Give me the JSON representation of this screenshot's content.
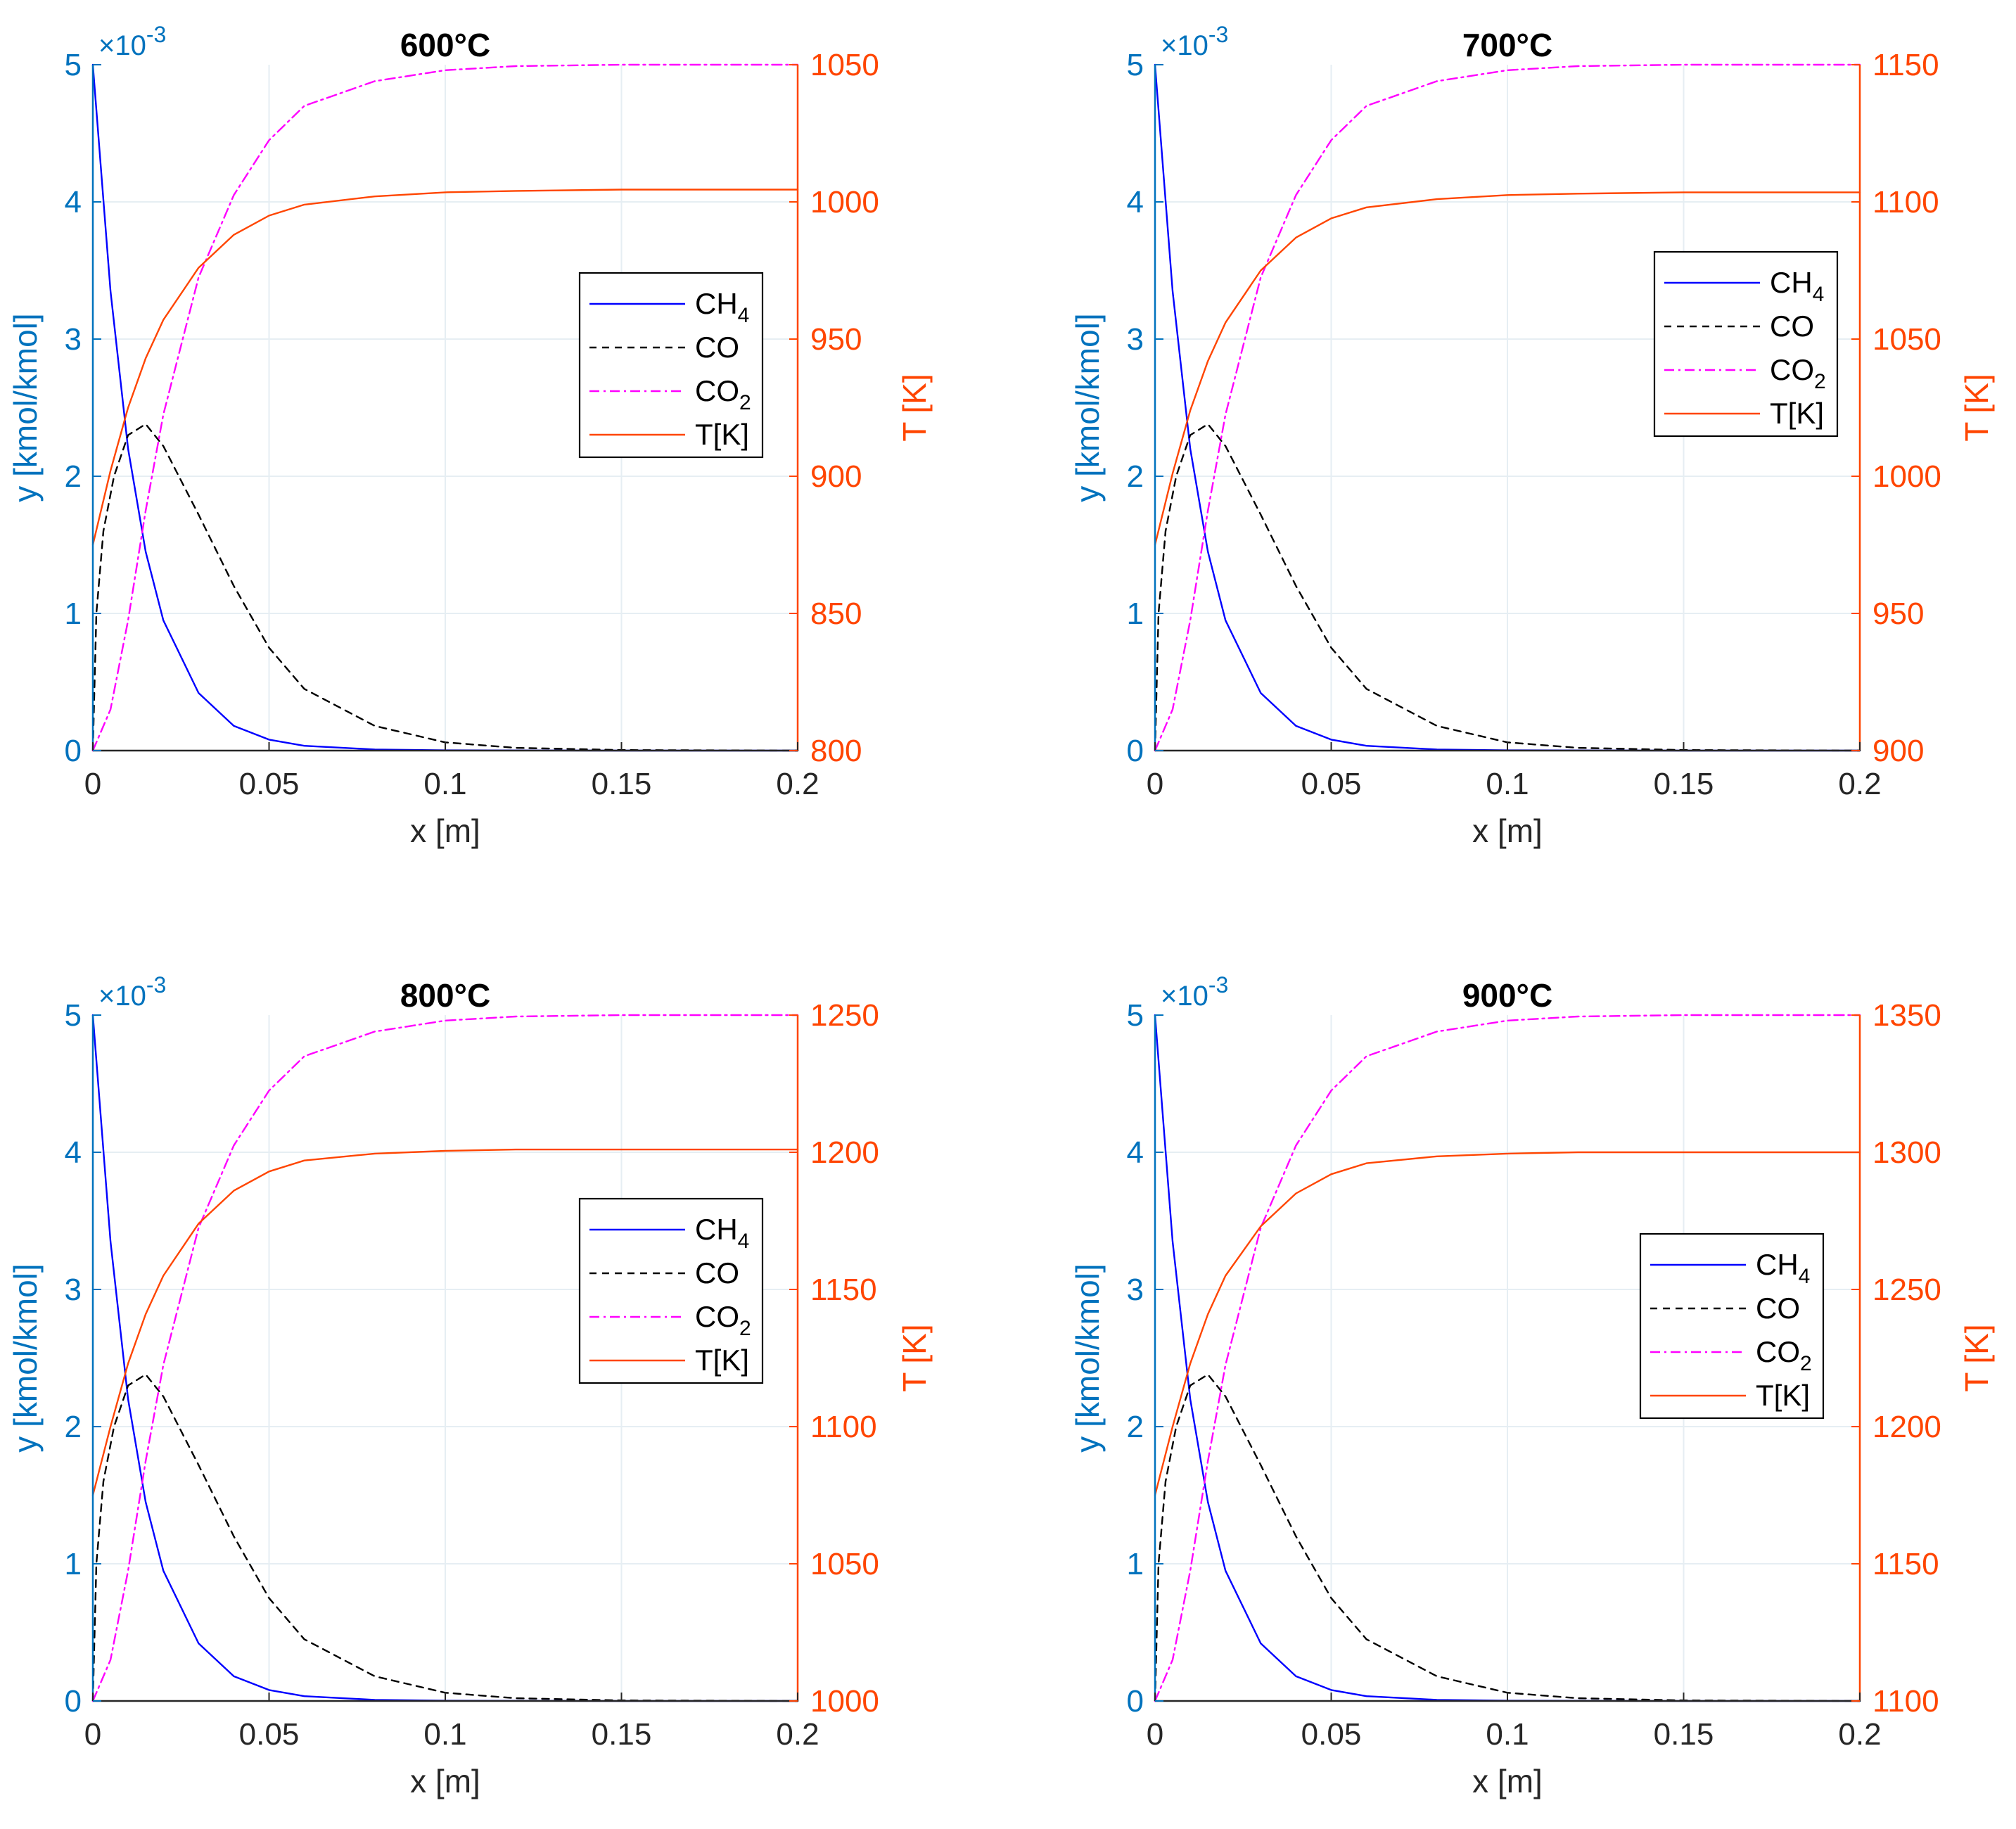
{
  "colors": {
    "CH4": "#0000FF",
    "CO": "#000000",
    "CO2": "#FF00FF",
    "T": "#FF4500",
    "left_axis": "#0072BD",
    "right_axis": "#FF4500",
    "grid": "#E6EEF3",
    "axis": "#262626"
  },
  "legend_labels": {
    "CH4": {
      "base": "CH",
      "sub": "4"
    },
    "CO": {
      "base": "CO",
      "sub": ""
    },
    "CO2": {
      "base": "CO",
      "sub": "2"
    },
    "T": {
      "base": "T[K]",
      "sub": ""
    }
  },
  "chart_data": [
    {
      "type": "line",
      "title": "600°C",
      "xlabel": "x [m]",
      "ylabel": "y [kmol/kmol]",
      "ylabel_right": "T [K]",
      "y_exponent": "×10",
      "y_exponent_power": "-3",
      "xlim": [
        0,
        0.2
      ],
      "ylim": [
        0,
        5
      ],
      "ylim_right": [
        800,
        1050
      ],
      "xticks": [
        "0",
        "0.05",
        "0.1",
        "0.15",
        "0.2"
      ],
      "yticks": [
        "0",
        "1",
        "2",
        "3",
        "4",
        "5"
      ],
      "yticks_right": [
        "800",
        "850",
        "900",
        "950",
        "1000",
        "1050"
      ],
      "grid": true,
      "legend_position": "center-right",
      "series": [
        {
          "name": "CH4",
          "axis": "left",
          "style": "solid",
          "x": [
            0,
            0.005,
            0.01,
            0.015,
            0.02,
            0.03,
            0.04,
            0.05,
            0.06,
            0.08,
            0.1,
            0.15,
            0.2
          ],
          "y": [
            5.0,
            3.35,
            2.2,
            1.45,
            0.95,
            0.42,
            0.18,
            0.08,
            0.035,
            0.008,
            0.002,
            0.0,
            0.0
          ]
        },
        {
          "name": "CO",
          "axis": "left",
          "style": "dashed",
          "x": [
            0,
            0.001,
            0.003,
            0.006,
            0.01,
            0.015,
            0.02,
            0.03,
            0.04,
            0.05,
            0.06,
            0.08,
            0.1,
            0.12,
            0.15,
            0.2
          ],
          "y": [
            0.0,
            1.0,
            1.6,
            2.0,
            2.3,
            2.38,
            2.22,
            1.72,
            1.2,
            0.75,
            0.45,
            0.18,
            0.06,
            0.02,
            0.004,
            0.0
          ]
        },
        {
          "name": "CO2",
          "axis": "left",
          "style": "dashdot",
          "x": [
            0,
            0.005,
            0.01,
            0.015,
            0.02,
            0.03,
            0.04,
            0.05,
            0.06,
            0.08,
            0.1,
            0.12,
            0.15,
            0.2
          ],
          "y": [
            0.0,
            0.3,
            0.95,
            1.75,
            2.45,
            3.45,
            4.05,
            4.45,
            4.7,
            4.88,
            4.96,
            4.99,
            5.0,
            5.0
          ]
        },
        {
          "name": "T[K]",
          "axis": "right",
          "style": "solid",
          "x": [
            0,
            0.005,
            0.01,
            0.015,
            0.02,
            0.03,
            0.04,
            0.05,
            0.06,
            0.08,
            0.1,
            0.12,
            0.15,
            0.2
          ],
          "y": [
            875,
            902,
            925,
            943,
            957,
            976,
            988,
            995,
            999,
            1002,
            1003.5,
            1004,
            1004.5,
            1004.5
          ]
        }
      ]
    },
    {
      "type": "line",
      "title": "700°C",
      "xlabel": "x [m]",
      "ylabel": "y [kmol/kmol]",
      "ylabel_right": "T [K]",
      "y_exponent": "×10",
      "y_exponent_power": "-3",
      "xlim": [
        0,
        0.2
      ],
      "ylim": [
        0,
        5
      ],
      "ylim_right": [
        900,
        1150
      ],
      "xticks": [
        "0",
        "0.05",
        "0.1",
        "0.15",
        "0.2"
      ],
      "yticks": [
        "0",
        "1",
        "2",
        "3",
        "4",
        "5"
      ],
      "yticks_right": [
        "900",
        "950",
        "1000",
        "1050",
        "1100",
        "1150"
      ],
      "grid": true,
      "legend_position": "upper-right",
      "series": [
        {
          "name": "CH4",
          "axis": "left",
          "style": "solid",
          "x": [
            0,
            0.005,
            0.01,
            0.015,
            0.02,
            0.03,
            0.04,
            0.05,
            0.06,
            0.08,
            0.1,
            0.15,
            0.2
          ],
          "y": [
            5.0,
            3.35,
            2.2,
            1.45,
            0.95,
            0.42,
            0.18,
            0.08,
            0.035,
            0.008,
            0.002,
            0.0,
            0.0
          ]
        },
        {
          "name": "CO",
          "axis": "left",
          "style": "dashed",
          "x": [
            0,
            0.001,
            0.003,
            0.006,
            0.01,
            0.015,
            0.02,
            0.03,
            0.04,
            0.05,
            0.06,
            0.08,
            0.1,
            0.12,
            0.15,
            0.2
          ],
          "y": [
            0.0,
            1.0,
            1.6,
            2.0,
            2.3,
            2.38,
            2.22,
            1.72,
            1.2,
            0.75,
            0.45,
            0.18,
            0.06,
            0.02,
            0.004,
            0.0
          ]
        },
        {
          "name": "CO2",
          "axis": "left",
          "style": "dashdot",
          "x": [
            0,
            0.005,
            0.01,
            0.015,
            0.02,
            0.03,
            0.04,
            0.05,
            0.06,
            0.08,
            0.1,
            0.12,
            0.15,
            0.2
          ],
          "y": [
            0.0,
            0.3,
            0.95,
            1.75,
            2.45,
            3.45,
            4.05,
            4.45,
            4.7,
            4.88,
            4.96,
            4.99,
            5.0,
            5.0
          ]
        },
        {
          "name": "T[K]",
          "axis": "right",
          "style": "solid",
          "x": [
            0,
            0.005,
            0.01,
            0.015,
            0.02,
            0.03,
            0.04,
            0.05,
            0.06,
            0.08,
            0.1,
            0.12,
            0.15,
            0.2
          ],
          "y": [
            975,
            1001,
            1024,
            1042,
            1056,
            1075,
            1087,
            1094,
            1098,
            1101,
            1102.5,
            1103,
            1103.5,
            1103.5
          ]
        }
      ]
    },
    {
      "type": "line",
      "title": "800°C",
      "xlabel": "x [m]",
      "ylabel": "y [kmol/kmol]",
      "ylabel_right": "T [K]",
      "y_exponent": "×10",
      "y_exponent_power": "-3",
      "xlim": [
        0,
        0.2
      ],
      "ylim": [
        0,
        5
      ],
      "ylim_right": [
        1000,
        1250
      ],
      "xticks": [
        "0",
        "0.05",
        "0.1",
        "0.15",
        "0.2"
      ],
      "yticks": [
        "0",
        "1",
        "2",
        "3",
        "4",
        "5"
      ],
      "yticks_right": [
        "1000",
        "1050",
        "1100",
        "1150",
        "1200",
        "1250"
      ],
      "grid": true,
      "legend_position": "center-right",
      "series": [
        {
          "name": "CH4",
          "axis": "left",
          "style": "solid",
          "x": [
            0,
            0.005,
            0.01,
            0.015,
            0.02,
            0.03,
            0.04,
            0.05,
            0.06,
            0.08,
            0.1,
            0.15,
            0.2
          ],
          "y": [
            5.0,
            3.35,
            2.2,
            1.45,
            0.95,
            0.42,
            0.18,
            0.08,
            0.035,
            0.008,
            0.002,
            0.0,
            0.0
          ]
        },
        {
          "name": "CO",
          "axis": "left",
          "style": "dashed",
          "x": [
            0,
            0.001,
            0.003,
            0.006,
            0.01,
            0.015,
            0.02,
            0.03,
            0.04,
            0.05,
            0.06,
            0.08,
            0.1,
            0.12,
            0.15,
            0.2
          ],
          "y": [
            0.0,
            1.0,
            1.6,
            2.0,
            2.3,
            2.38,
            2.22,
            1.72,
            1.2,
            0.75,
            0.45,
            0.18,
            0.06,
            0.02,
            0.004,
            0.0
          ]
        },
        {
          "name": "CO2",
          "axis": "left",
          "style": "dashdot",
          "x": [
            0,
            0.005,
            0.01,
            0.015,
            0.02,
            0.03,
            0.04,
            0.05,
            0.06,
            0.08,
            0.1,
            0.12,
            0.15,
            0.2
          ],
          "y": [
            0.0,
            0.3,
            0.95,
            1.75,
            2.45,
            3.45,
            4.05,
            4.45,
            4.7,
            4.88,
            4.96,
            4.99,
            5.0,
            5.0
          ]
        },
        {
          "name": "T[K]",
          "axis": "right",
          "style": "solid",
          "x": [
            0,
            0.005,
            0.01,
            0.015,
            0.02,
            0.03,
            0.04,
            0.05,
            0.06,
            0.08,
            0.1,
            0.12,
            0.15,
            0.2
          ],
          "y": [
            1075,
            1100,
            1123,
            1141,
            1155,
            1174,
            1186,
            1193,
            1197,
            1199.5,
            1200.5,
            1201,
            1201,
            1201
          ]
        }
      ]
    },
    {
      "type": "line",
      "title": "900°C",
      "xlabel": "x [m]",
      "ylabel": "y [kmol/kmol]",
      "ylabel_right": "T [K]",
      "y_exponent": "×10",
      "y_exponent_power": "-3",
      "xlim": [
        0,
        0.2
      ],
      "ylim": [
        0,
        5
      ],
      "ylim_right": [
        1100,
        1350
      ],
      "xticks": [
        "0",
        "0.05",
        "0.1",
        "0.15",
        "0.2"
      ],
      "yticks": [
        "0",
        "1",
        "2",
        "3",
        "4",
        "5"
      ],
      "yticks_right": [
        "1100",
        "1150",
        "1200",
        "1250",
        "1300",
        "1350"
      ],
      "grid": true,
      "legend_position": "center-right",
      "series": [
        {
          "name": "CH4",
          "axis": "left",
          "style": "solid",
          "x": [
            0,
            0.005,
            0.01,
            0.015,
            0.02,
            0.03,
            0.04,
            0.05,
            0.06,
            0.08,
            0.1,
            0.15,
            0.2
          ],
          "y": [
            5.0,
            3.35,
            2.2,
            1.45,
            0.95,
            0.42,
            0.18,
            0.08,
            0.035,
            0.008,
            0.002,
            0.0,
            0.0
          ]
        },
        {
          "name": "CO",
          "axis": "left",
          "style": "dashed",
          "x": [
            0,
            0.001,
            0.003,
            0.006,
            0.01,
            0.015,
            0.02,
            0.03,
            0.04,
            0.05,
            0.06,
            0.08,
            0.1,
            0.12,
            0.15,
            0.2
          ],
          "y": [
            0.0,
            1.0,
            1.6,
            2.0,
            2.3,
            2.38,
            2.22,
            1.72,
            1.2,
            0.75,
            0.45,
            0.18,
            0.06,
            0.02,
            0.004,
            0.0
          ]
        },
        {
          "name": "CO2",
          "axis": "left",
          "style": "dashdot",
          "x": [
            0,
            0.005,
            0.01,
            0.015,
            0.02,
            0.03,
            0.04,
            0.05,
            0.06,
            0.08,
            0.1,
            0.12,
            0.15,
            0.2
          ],
          "y": [
            0.0,
            0.3,
            0.95,
            1.75,
            2.45,
            3.45,
            4.05,
            4.45,
            4.7,
            4.88,
            4.96,
            4.99,
            5.0,
            5.0
          ]
        },
        {
          "name": "T[K]",
          "axis": "right",
          "style": "solid",
          "x": [
            0,
            0.005,
            0.01,
            0.015,
            0.02,
            0.03,
            0.04,
            0.05,
            0.06,
            0.08,
            0.1,
            0.12,
            0.15,
            0.2
          ],
          "y": [
            1175,
            1200,
            1223,
            1241,
            1255,
            1273,
            1285,
            1292,
            1296,
            1298.5,
            1299.5,
            1300,
            1300,
            1300
          ]
        }
      ]
    }
  ]
}
